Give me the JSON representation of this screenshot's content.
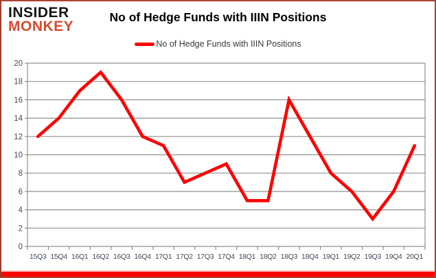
{
  "header": {
    "logo_line1": "INSIDER",
    "logo_line2": "MONKEY",
    "title": "No of Hedge Funds with IIIN Positions"
  },
  "legend": {
    "label": "No of Hedge Funds with IIIN Positions",
    "swatch_color": "#fe0100"
  },
  "chart_data": {
    "type": "line",
    "title": "No of Hedge Funds with IIIN Positions",
    "categories": [
      "15Q3",
      "15Q4",
      "16Q1",
      "16Q2",
      "16Q3",
      "16Q4",
      "17Q1",
      "17Q2",
      "17Q3",
      "17Q4",
      "18Q1",
      "18Q2",
      "18Q3",
      "18Q4",
      "19Q1",
      "19Q2",
      "19Q3",
      "19Q4",
      "20Q1"
    ],
    "series": [
      {
        "name": "No of Hedge Funds with IIIN Positions",
        "color": "#fe0100",
        "values": [
          12,
          14,
          17,
          19,
          16,
          12,
          11,
          7,
          8,
          9,
          5,
          5,
          16,
          12,
          8,
          6,
          3,
          6,
          11
        ]
      }
    ],
    "xlabel": "",
    "ylabel": "",
    "ylim": [
      0,
      20
    ],
    "ytick_step": 2,
    "grid": true,
    "legend_position": "top-center"
  },
  "colors": {
    "gridline": "#8f8f8f",
    "axis": "#8f8f8f",
    "tick_label": "#3f4a5a",
    "x_label": "#3f4a5a",
    "frame_border": "#ad4334",
    "bottom_bar": "#fe0100",
    "logo_black": "#151515",
    "logo_red": "#d84b2f"
  }
}
